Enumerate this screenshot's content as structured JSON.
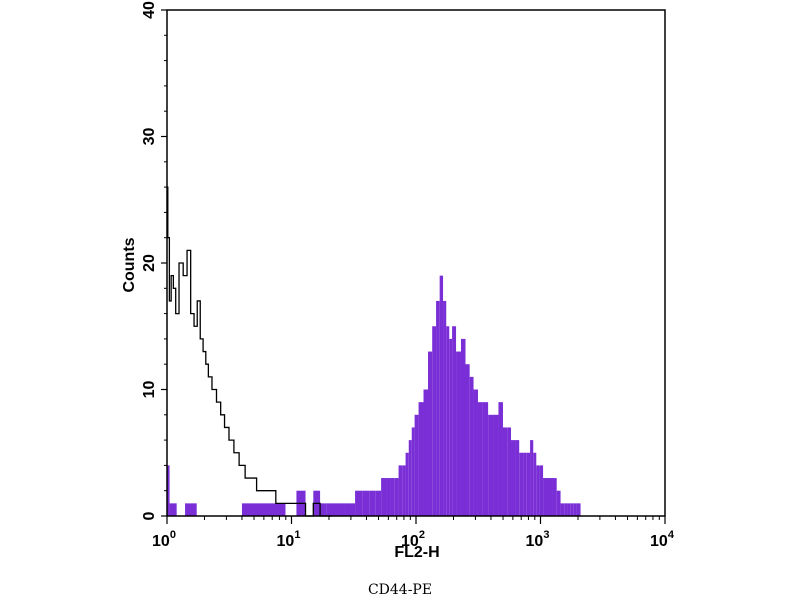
{
  "chart_data": {
    "type": "histogram",
    "xlabel": "FL2-H",
    "ylabel": "Counts",
    "caption": "CD44-PE",
    "x_scale": "log",
    "xlim": [
      1,
      10000
    ],
    "ylim": [
      0,
      40
    ],
    "x_ticks": [
      {
        "base": "10",
        "exp": "0"
      },
      {
        "base": "10",
        "exp": "1"
      },
      {
        "base": "10",
        "exp": "2"
      },
      {
        "base": "10",
        "exp": "3"
      },
      {
        "base": "10",
        "exp": "4"
      }
    ],
    "y_ticks": [
      "0",
      "10",
      "20",
      "30",
      "40"
    ],
    "grid": false,
    "series": [
      {
        "style": "filled",
        "color": "#7a2fd6",
        "x": [
          1.0,
          1.1,
          1.3,
          1.5,
          2.0,
          8,
          10,
          12,
          14,
          16,
          18,
          20,
          25,
          30,
          35,
          40,
          45,
          50,
          55,
          60,
          65,
          70,
          75,
          80,
          85,
          90,
          95,
          100,
          110,
          120,
          130,
          140,
          150,
          160,
          170,
          180,
          190,
          200,
          220,
          240,
          260,
          280,
          300,
          330,
          360,
          400,
          440,
          480,
          520,
          560,
          600,
          650,
          700,
          750,
          800,
          850,
          900,
          950,
          1000,
          1100,
          1200,
          1300,
          1400,
          1500,
          1600,
          1700,
          1800,
          1900,
          2000,
          2200
        ],
        "y": [
          4,
          1,
          0,
          1,
          0,
          1,
          0,
          2,
          0,
          2,
          1,
          1,
          1,
          1,
          2,
          2,
          2,
          2,
          3,
          3,
          3,
          3,
          4,
          4,
          5,
          6,
          7,
          8,
          9,
          10,
          13,
          15,
          17,
          19,
          17,
          15,
          14,
          15,
          13,
          14,
          12,
          11,
          10,
          9,
          9,
          8,
          8,
          9,
          7,
          7,
          6,
          6,
          5,
          5,
          5,
          6,
          5,
          4,
          4,
          3,
          3,
          3,
          2,
          1,
          1,
          1,
          1,
          1,
          1,
          0
        ]
      },
      {
        "style": "outline",
        "color": "#000000",
        "x": [
          1.0,
          1.03,
          1.06,
          1.1,
          1.15,
          1.2,
          1.3,
          1.4,
          1.5,
          1.6,
          1.7,
          1.8,
          1.9,
          2.0,
          2.1,
          2.2,
          2.4,
          2.6,
          2.8,
          3.0,
          3.3,
          3.6,
          4.0,
          4.5,
          5.0,
          5.5,
          6.0,
          7.0,
          8.0,
          9.0,
          10,
          12,
          14,
          16,
          18,
          20
        ],
        "y": [
          26,
          22,
          17,
          19,
          18,
          16,
          20,
          19,
          21,
          16,
          15,
          17,
          14,
          13,
          12,
          11,
          10,
          9,
          8,
          7,
          6,
          5,
          4,
          3,
          3,
          2,
          2,
          2,
          1,
          1,
          1,
          1,
          0,
          1,
          0,
          0
        ]
      }
    ]
  }
}
